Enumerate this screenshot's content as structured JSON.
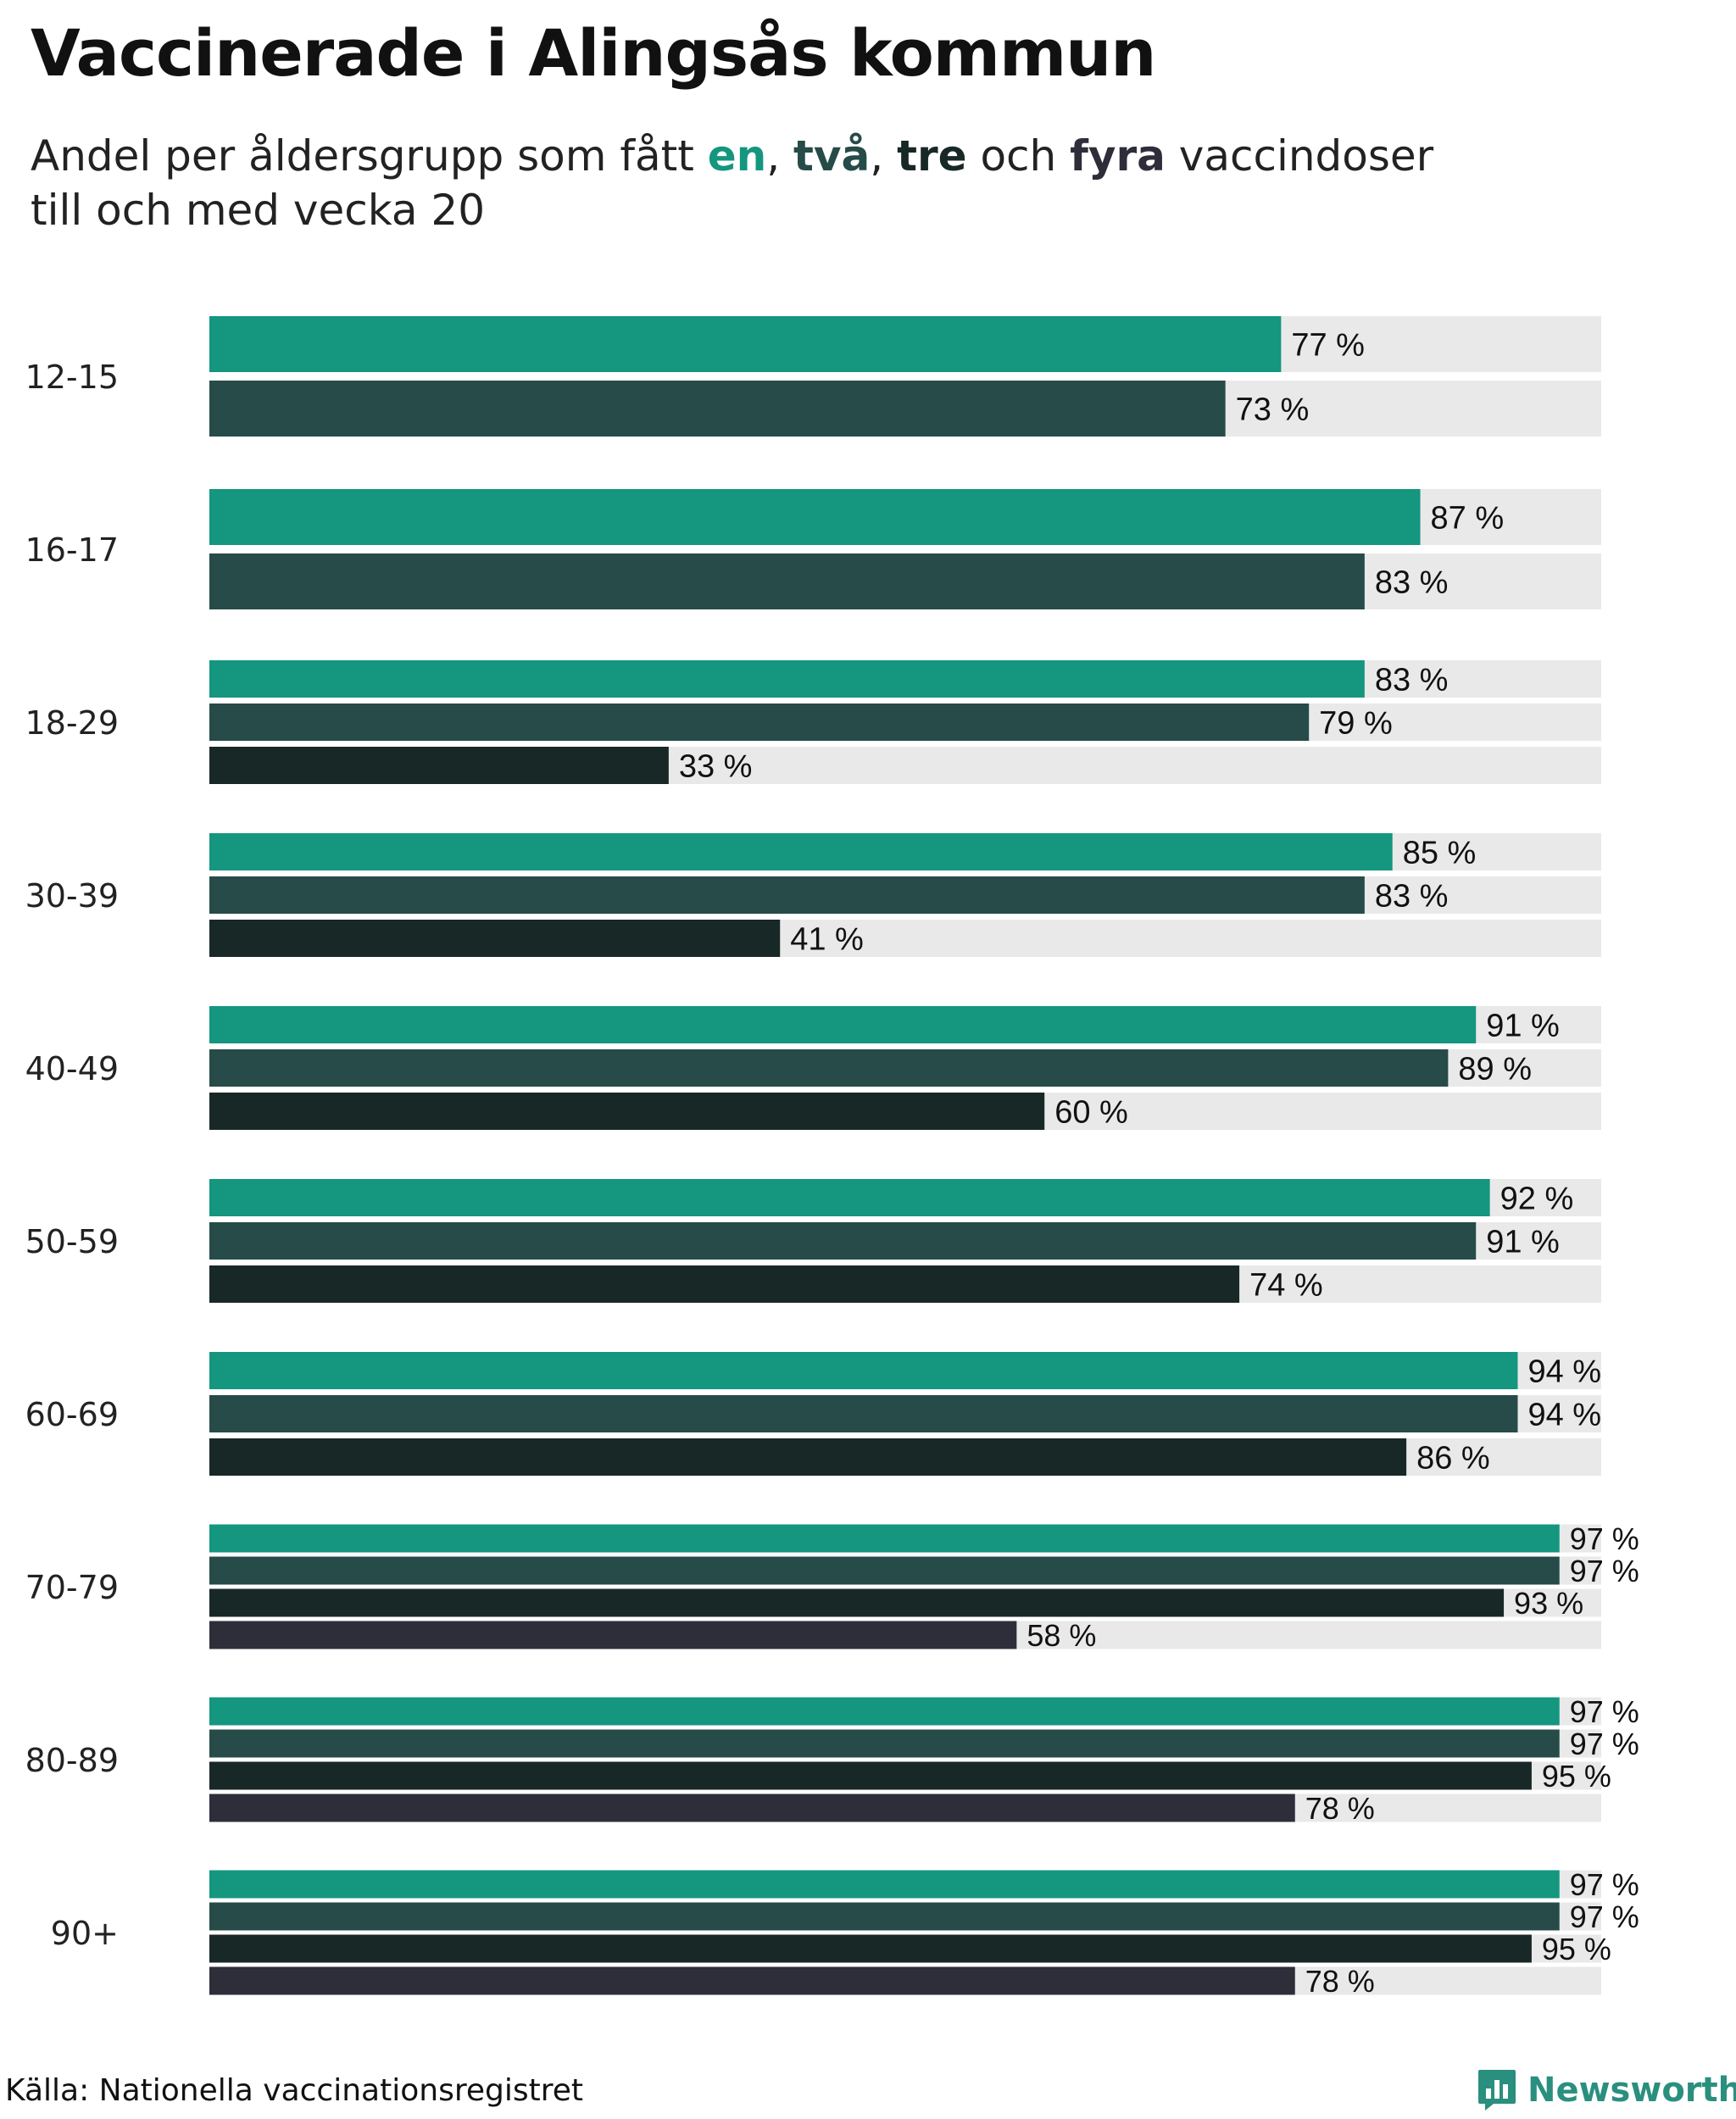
{
  "header": {
    "title": "Vaccinerade i Alingsås kommun",
    "subtitle_pre": "Andel per åldersgrupp som fått ",
    "kw1": "en",
    "sep1": ", ",
    "kw2": "två",
    "sep2": ", ",
    "kw3": "tre",
    "sep3": " och ",
    "kw4": "fyra",
    "subtitle_post": " vaccindoser",
    "subtitle_line2": "till och med vecka 20"
  },
  "colors": {
    "en": "#14967f",
    "tva": "#264b48",
    "tre": "#182826",
    "fyra": "#2e2d3a",
    "track": "#e9e9e9"
  },
  "chart_data": {
    "type": "bar",
    "orientation": "horizontal",
    "unit": " %",
    "xlim": [
      0,
      100
    ],
    "categories": [
      "12-15",
      "16-17",
      "18-29",
      "30-39",
      "40-49",
      "50-59",
      "60-69",
      "70-79",
      "80-89",
      "90+"
    ],
    "series": [
      {
        "name": "en",
        "color": "#14967f",
        "values": [
          77,
          87,
          83,
          85,
          91,
          92,
          94,
          97,
          97,
          97
        ]
      },
      {
        "name": "två",
        "color": "#264b48",
        "values": [
          73,
          83,
          79,
          83,
          89,
          91,
          94,
          97,
          97,
          97
        ]
      },
      {
        "name": "tre",
        "color": "#182826",
        "values": [
          null,
          null,
          33,
          41,
          60,
          74,
          86,
          93,
          95,
          95
        ]
      },
      {
        "name": "fyra",
        "color": "#2e2d3a",
        "values": [
          null,
          null,
          null,
          null,
          null,
          null,
          null,
          58,
          78,
          78
        ]
      }
    ]
  },
  "footer": {
    "source": "Källa: Nationella vaccinationsregistret",
    "brand": "Newsworthy"
  }
}
